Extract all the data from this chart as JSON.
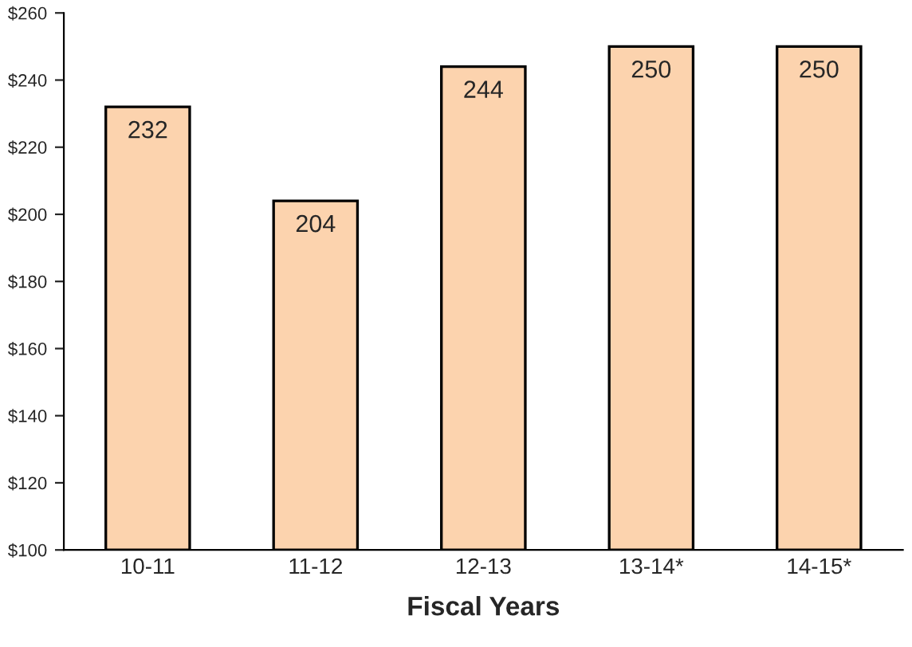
{
  "chart_data": {
    "type": "bar",
    "xlabel": "Fiscal Years",
    "categories": [
      "10-11",
      "11-12",
      "12-13",
      "13-14*",
      "14-15*"
    ],
    "values": [
      232,
      204,
      244,
      250,
      250
    ],
    "color": "#fcd3ae",
    "ylim": [
      100,
      260
    ],
    "yticks": [
      {
        "value": 100,
        "label": "$100"
      },
      {
        "value": 120,
        "label": "$120"
      },
      {
        "value": 140,
        "label": "$140"
      },
      {
        "value": 160,
        "label": "$160"
      },
      {
        "value": 180,
        "label": "$180"
      },
      {
        "value": 200,
        "label": "$200"
      },
      {
        "value": 220,
        "label": "$220"
      },
      {
        "value": 240,
        "label": "$240"
      },
      {
        "value": 260,
        "label": "$260"
      }
    ],
    "data_labels": true,
    "grid": false,
    "legend": false
  }
}
